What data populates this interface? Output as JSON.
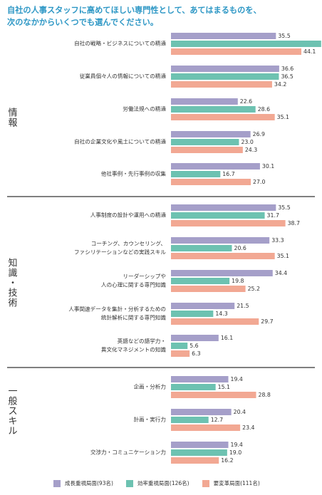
{
  "question": {
    "line1": "自社の人事スタッフに高めてほしい専門性として、あてはまるものを、",
    "line2": "次のなかからいくつでも選んでください。"
  },
  "colors": {
    "growth": "#a59fc9",
    "efficiency": "#6dc2b1",
    "reform": "#f2a893",
    "separator": "#333333"
  },
  "legend": [
    {
      "label": "成長重視局面(93名)",
      "color": "#a59fc9"
    },
    {
      "label": "効率重視局面(126名)",
      "color": "#6dc2b1"
    },
    {
      "label": "要変革局面(111名)",
      "color": "#f2a893"
    }
  ],
  "chart_data": {
    "type": "bar",
    "orientation": "horizontal",
    "xlim": [
      0,
      60
    ],
    "series_names": [
      "成長重視局面(93名)",
      "効率重視局面(126名)",
      "要変革局面(111名)"
    ],
    "sections": [
      {
        "label": "情報",
        "items": [
          {
            "label": [
              "自社の戦略・ビジネスについての精通"
            ],
            "values": [
              35.5,
              50.8,
              44.1
            ]
          },
          {
            "label": [
              "従業員個々人の情報についての精通"
            ],
            "values": [
              36.6,
              36.5,
              34.2
            ]
          },
          {
            "label": [
              "労働法規への精通"
            ],
            "values": [
              22.6,
              28.6,
              35.1
            ]
          },
          {
            "label": [
              "自社の企業文化や風土についての精通"
            ],
            "values": [
              26.9,
              23.0,
              24.3
            ]
          },
          {
            "label": [
              "他社事例・先行事例の収集"
            ],
            "values": [
              30.1,
              16.7,
              27.0
            ]
          }
        ]
      },
      {
        "label": "知識・技術",
        "items": [
          {
            "label": [
              "人事制度の設計や運用への精通"
            ],
            "values": [
              35.5,
              31.7,
              38.7
            ]
          },
          {
            "label": [
              "コーチング、カウンセリング、",
              "ファシリテーションなどの実践スキル"
            ],
            "values": [
              33.3,
              20.6,
              35.1
            ]
          },
          {
            "label": [
              "リーダーシップや",
              "人の心理に関する専門知識"
            ],
            "values": [
              34.4,
              19.8,
              25.2
            ]
          },
          {
            "label": [
              "人事関連データを集計・分析するための",
              "統計解析に関する専門知識"
            ],
            "values": [
              21.5,
              14.3,
              29.7
            ]
          },
          {
            "label": [
              "英語などの語学力・",
              "異文化マネジメントの知識"
            ],
            "values": [
              16.1,
              5.6,
              6.3
            ]
          }
        ]
      },
      {
        "label": "一般スキル",
        "items": [
          {
            "label": [
              "企画・分析力"
            ],
            "values": [
              19.4,
              15.1,
              28.8
            ]
          },
          {
            "label": [
              "計画・実行力"
            ],
            "values": [
              20.4,
              12.7,
              23.4
            ]
          },
          {
            "label": [
              "交渉力・コミュニケーション力"
            ],
            "values": [
              19.4,
              19.0,
              16.2
            ]
          }
        ]
      }
    ]
  }
}
